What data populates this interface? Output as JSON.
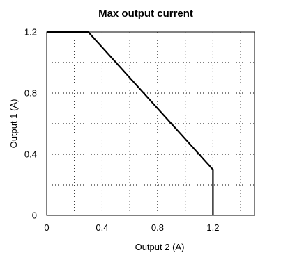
{
  "chart_data": {
    "type": "line",
    "title": "Max output current",
    "xlabel": "Output 2 (A)",
    "ylabel": "Output 1 (A)",
    "xlim": [
      0,
      1.5
    ],
    "ylim": [
      0,
      1.2
    ],
    "xticks": [
      0,
      0.4,
      0.8,
      1.2
    ],
    "xtick_labels": [
      "0",
      "0.4",
      "0.8",
      "1.2"
    ],
    "yticks": [
      0,
      0.4,
      0.8,
      1.2
    ],
    "ytick_labels": [
      "0",
      "0.4",
      "0.8",
      "1.2"
    ],
    "x_grid": [
      0.2,
      0.4,
      0.6,
      0.8,
      1.0,
      1.2,
      1.4
    ],
    "y_grid": [
      0.2,
      0.4,
      0.6,
      0.8,
      1.0
    ],
    "grid": true,
    "series": [
      {
        "x": [
          0,
          0.3,
          1.2,
          1.2
        ],
        "y": [
          1.2,
          1.2,
          0.3,
          0
        ]
      }
    ]
  }
}
